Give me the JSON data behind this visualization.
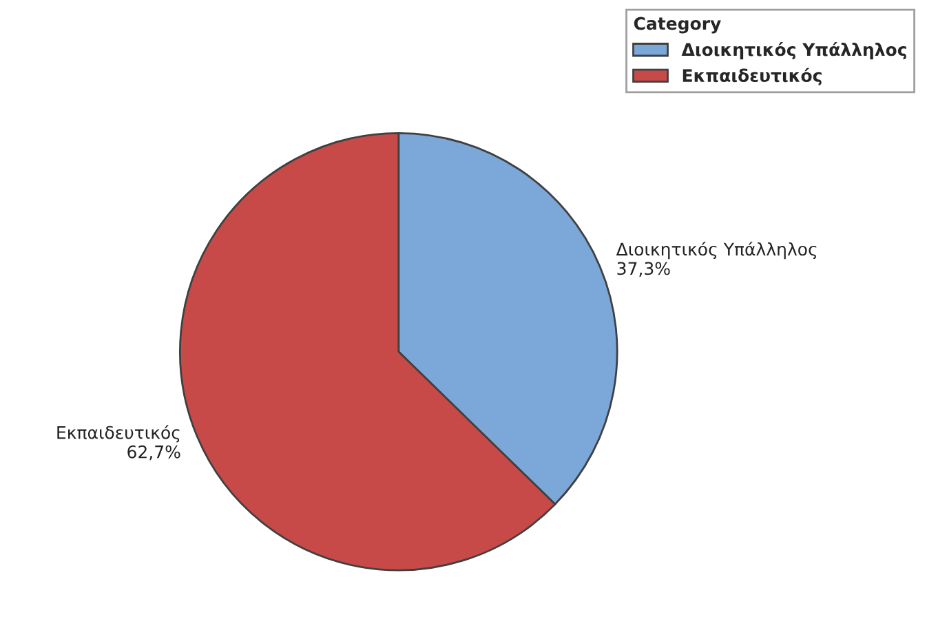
{
  "chart_data": {
    "type": "pie",
    "legend_title": "Category",
    "categories": [
      "Διοικητικός Υπάλληλος",
      "Εκπαιδευτικός"
    ],
    "values": [
      37.3,
      62.7
    ],
    "value_labels": [
      "37,3%",
      "62,7%"
    ],
    "colors": [
      "#7ba7d9",
      "#c84a48"
    ],
    "legend": "top right"
  }
}
